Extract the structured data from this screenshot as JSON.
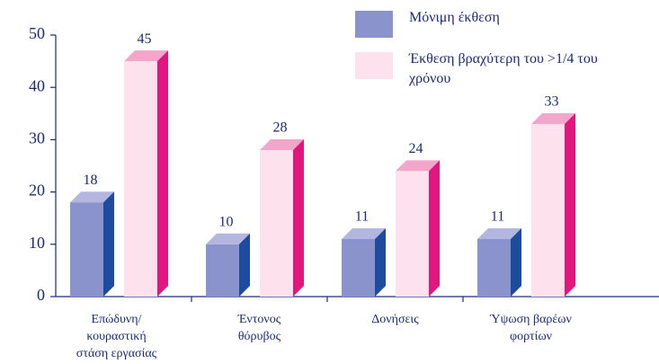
{
  "chart_data": {
    "type": "bar3d",
    "categories": [
      "Επώδυνη/\nκουραστική\nστάση εργασίας",
      "Έντονος\nθόρυβος",
      "Δονήσεις",
      "Ύψωση βαρέων\nφορτίων"
    ],
    "series": [
      {
        "name": "Μόνιμη έκθεση",
        "color": "#8a93cc",
        "side_color": "#1d4c9e",
        "top_color": "#b3b7e0",
        "values": [
          18,
          10,
          11,
          11
        ]
      },
      {
        "name": "Έκθεση βραχύτερη του >1/4 του\nχρόνου",
        "color": "#fde1ec",
        "side_color": "#e2167f",
        "top_color": "#f4a6ca",
        "values": [
          45,
          28,
          24,
          33
        ]
      }
    ],
    "ylim": [
      0,
      50
    ],
    "yticks": [
      0,
      10,
      20,
      30,
      40,
      50
    ]
  }
}
